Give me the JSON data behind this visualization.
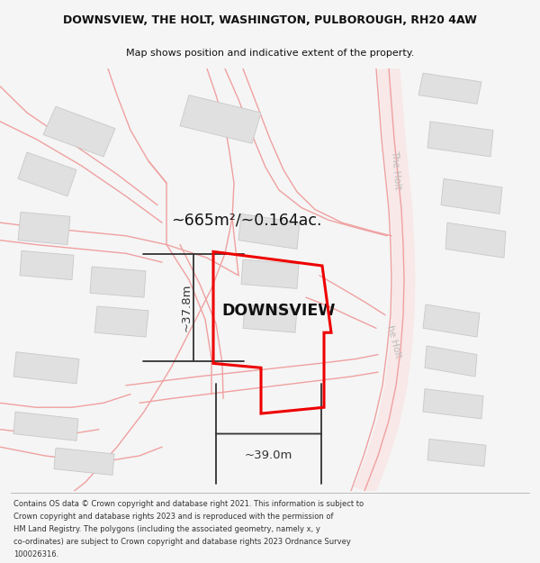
{
  "title_line1": "DOWNSVIEW, THE HOLT, WASHINGTON, PULBOROUGH, RH20 4AW",
  "title_line2": "Map shows position and indicative extent of the property.",
  "property_label": "DOWNSVIEW",
  "area_text": "~665m²/~0.164ac.",
  "dim_vertical": "~37.8m",
  "dim_horizontal": "~39.0m",
  "road_label_upper": "The Holt",
  "road_label_lower": "he Holt",
  "copyright_lines": [
    "Contains OS data © Crown copyright and database right 2021. This information is subject to",
    "Crown copyright and database rights 2023 and is reproduced with the permission of",
    "HM Land Registry. The polygons (including the associated geometry, namely x, y",
    "co-ordinates) are subject to Crown copyright and database rights 2023 Ordnance Survey",
    "100026316."
  ],
  "bg_color": "#f5f5f5",
  "map_bg": "#ffffff",
  "road_color": "#f0a0a0",
  "road_fill": "#fce8e8",
  "building_color": "#e0e0e0",
  "building_edge": "#c8c8c8",
  "property_color": "#ee0000",
  "dim_color": "#333333",
  "road_label_color": "#bbbbbb",
  "title_color": "#111111",
  "copyright_color": "#333333"
}
